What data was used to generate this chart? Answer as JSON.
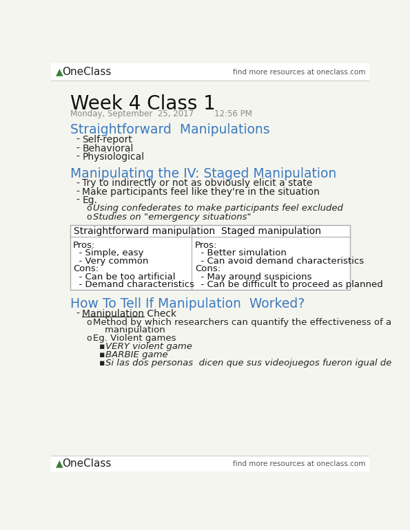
{
  "bg_color": "#f5f5f0",
  "border_color": "#cccccc",
  "logo_color": "#3a7d3a",
  "header_right": "find more resources at oneclass.com",
  "footer_right": "find more resources at oneclass.com",
  "title": "Week 4 Class 1",
  "date_line": "Monday, September  25, 2017        12:56 PM",
  "heading_color": "#3a7abf",
  "section1_heading": "Straightforward  Manipulations",
  "section1_bullets": [
    "Self-report",
    "Behavioral",
    "Physiological"
  ],
  "section2_heading": "Manipulating the IV: Staged Manipulation",
  "section2_bullets": [
    "Try to indirectly or not as obviously elicit a state",
    "Make participants feel like they're in the situation",
    "Eg."
  ],
  "section2_sub_bullets": [
    "Using confederates to make participants feel excluded",
    "Studies on \"emergency situations\""
  ],
  "table_col1_header": "Straightforward manipulation",
  "table_col2_header": "Staged manipulation",
  "table_col1_content": [
    "Pros:",
    "  - Simple, easy",
    "  - Very common",
    "Cons:",
    "  - Can be too artificial",
    "  - Demand characteristics"
  ],
  "table_col2_content": [
    "Pros:",
    "  - Better simulation",
    "  - Can avoid demand characteristics",
    "Cons:",
    "  - May around suspicions",
    "  - Can be difficult to proceed as planned"
  ],
  "section3_heading": "How To Tell If Manipulation  Worked?",
  "section3_bullet_underlined": "Manipulation Check",
  "section3_sub_bullets": [
    "Method by which researchers can quantify the effectiveness of a",
    "    manipulation",
    "Eg. Violent games"
  ],
  "section3_sub_sub_bullets": [
    "VERY violent game",
    "BARBIE game",
    "Si las dos personas  dicen que sus videojuegos fueron igual de"
  ]
}
